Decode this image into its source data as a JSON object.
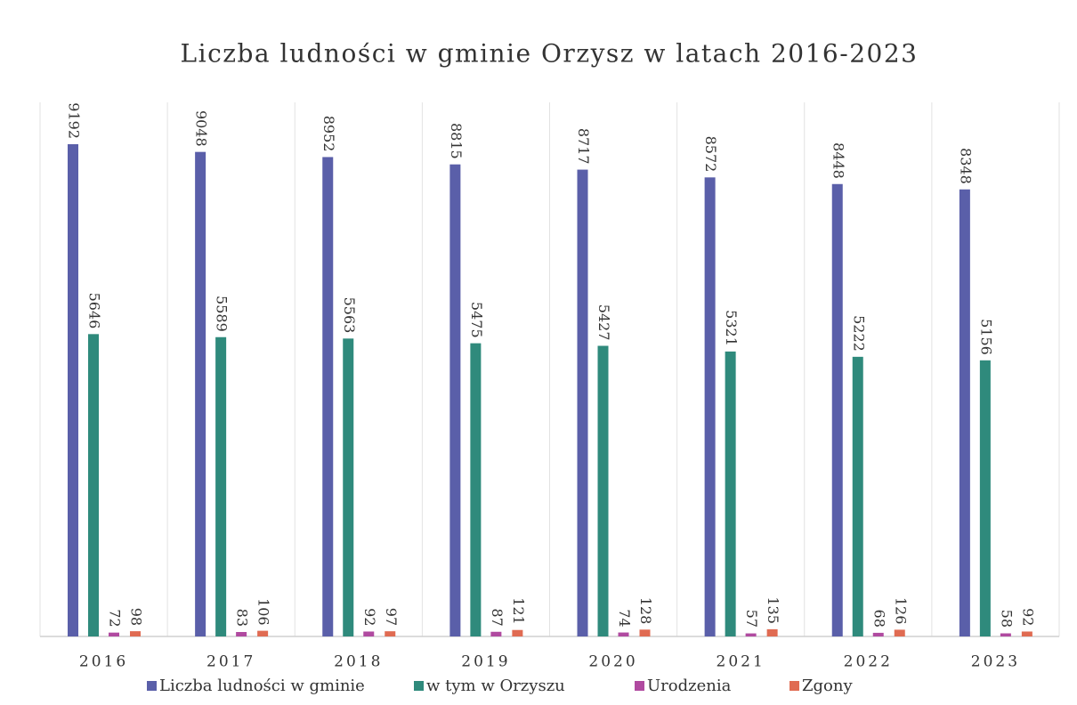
{
  "chart_data": {
    "type": "bar",
    "title": "Liczba ludności w gminie Orzysz w latach 2016-2023",
    "categories": [
      "2016",
      "2017",
      "2018",
      "2019",
      "2020",
      "2021",
      "2022",
      "2023"
    ],
    "series": [
      {
        "name": "Liczba ludności w gminie",
        "color": "#5a5fa9",
        "values": [
          9192,
          9048,
          8952,
          8815,
          8717,
          8572,
          8448,
          8348
        ]
      },
      {
        "name": "w tym w Orzyszu",
        "color": "#2f8a7c",
        "values": [
          5646,
          5589,
          5563,
          5475,
          5427,
          5321,
          5222,
          5156
        ]
      },
      {
        "name": "Urodzenia",
        "color": "#b04aa0",
        "values": [
          72,
          83,
          92,
          87,
          74,
          57,
          68,
          58
        ]
      },
      {
        "name": "Zgony",
        "color": "#e06b52",
        "values": [
          98,
          106,
          97,
          121,
          128,
          135,
          126,
          92
        ]
      }
    ]
  }
}
